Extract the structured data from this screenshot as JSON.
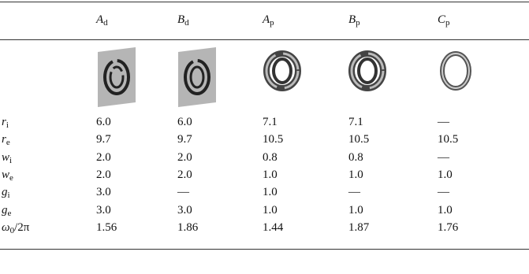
{
  "table": {
    "columns": [
      {
        "main": "A",
        "sub": "d"
      },
      {
        "main": "B",
        "sub": "d"
      },
      {
        "main": "A",
        "sub": "p"
      },
      {
        "main": "B",
        "sub": "p"
      },
      {
        "main": "C",
        "sub": "p"
      }
    ],
    "rows": [
      {
        "label": {
          "main": "r",
          "sub": "i"
        },
        "cells": [
          "6.0",
          "6.0",
          "7.1",
          "7.1",
          "—"
        ]
      },
      {
        "label": {
          "main": "r",
          "sub": "e"
        },
        "cells": [
          "9.7",
          "9.7",
          "10.5",
          "10.5",
          "10.5"
        ]
      },
      {
        "label": {
          "main": "w",
          "sub": "i"
        },
        "cells": [
          "2.0",
          "2.0",
          "0.8",
          "0.8",
          "—"
        ]
      },
      {
        "label": {
          "main": "w",
          "sub": "e"
        },
        "cells": [
          "2.0",
          "2.0",
          "1.0",
          "1.0",
          "1.0"
        ]
      },
      {
        "label": {
          "main": "g",
          "sub": "i"
        },
        "cells": [
          "3.0",
          "—",
          "1.0",
          "—",
          "—"
        ]
      },
      {
        "label": {
          "main": "g",
          "sub": "e"
        },
        "cells": [
          "3.0",
          "3.0",
          "1.0",
          "1.0",
          "1.0"
        ]
      },
      {
        "label": {
          "main": "ω",
          "sub": "0",
          "rest": "/2π"
        },
        "cells": [
          "1.56",
          "1.86",
          "1.44",
          "1.87",
          "1.76"
        ]
      }
    ]
  }
}
